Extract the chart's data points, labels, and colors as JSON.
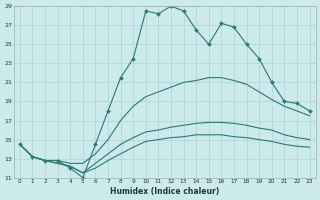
{
  "xlabel": "Humidex (Indice chaleur)",
  "bg_color": "#cce9ec",
  "grid_color": "#b0d8dc",
  "line_color": "#2a7a70",
  "xlim": [
    -0.5,
    23.5
  ],
  "ylim": [
    11,
    29
  ],
  "xticks": [
    0,
    1,
    2,
    3,
    4,
    5,
    6,
    7,
    8,
    9,
    10,
    11,
    12,
    13,
    14,
    15,
    16,
    17,
    18,
    19,
    20,
    21,
    22,
    23
  ],
  "yticks": [
    11,
    13,
    15,
    17,
    19,
    21,
    23,
    25,
    27,
    29
  ],
  "series": {
    "max": [
      14.5,
      13.2,
      12.8,
      12.8,
      12.0,
      11.0,
      14.5,
      18.0,
      21.5,
      23.5,
      28.5,
      28.2,
      29.0,
      28.5,
      26.5,
      25.0,
      27.2,
      26.8,
      25.0,
      23.5,
      21.0,
      19.0,
      18.8,
      18.0
    ],
    "mean": [
      14.5,
      13.2,
      12.8,
      12.8,
      12.5,
      12.5,
      13.5,
      15.0,
      17.0,
      18.5,
      19.5,
      20.0,
      20.5,
      21.0,
      21.2,
      21.5,
      21.5,
      21.2,
      20.8,
      20.0,
      19.2,
      18.5,
      18.0,
      17.5
    ],
    "min_low": [
      14.5,
      13.2,
      12.8,
      12.5,
      12.2,
      11.5,
      12.5,
      13.5,
      14.5,
      15.2,
      15.8,
      16.0,
      16.3,
      16.5,
      16.7,
      16.8,
      16.8,
      16.7,
      16.5,
      16.2,
      16.0,
      15.5,
      15.2,
      15.0
    ],
    "min_abs": [
      14.5,
      13.2,
      12.8,
      12.5,
      12.2,
      11.5,
      12.0,
      12.8,
      13.5,
      14.2,
      14.8,
      15.0,
      15.2,
      15.3,
      15.5,
      15.5,
      15.5,
      15.3,
      15.2,
      15.0,
      14.8,
      14.5,
      14.3,
      14.2
    ]
  }
}
